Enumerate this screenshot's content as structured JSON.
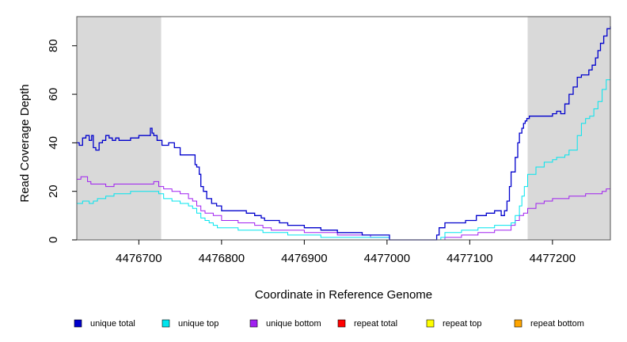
{
  "chart_data": {
    "type": "line",
    "xlabel": "Coordinate in Reference Genome",
    "ylabel": "Read Coverage Depth",
    "xlim": [
      4476625,
      4477270
    ],
    "ylim": [
      0,
      92
    ],
    "x_ticks": [
      4476700,
      4476800,
      4476900,
      4477000,
      4477100,
      4477200
    ],
    "x_tick_labels": [
      "4476700",
      "4476800",
      "4476900",
      "4477000",
      "4477100",
      "4477200"
    ],
    "y_ticks": [
      0,
      20,
      40,
      60,
      80
    ],
    "y_tick_labels": [
      "0",
      "20",
      "40",
      "60",
      "80"
    ],
    "shaded_regions": [
      {
        "x_start": 4476625,
        "x_end": 4476727,
        "color": "#d9d9d9"
      },
      {
        "x_start": 4477170,
        "x_end": 4477270,
        "color": "#d9d9d9"
      }
    ],
    "series": [
      {
        "name": "unique total",
        "color": "#0000cd",
        "x": [
          4476625,
          4476628,
          4476632,
          4476636,
          4476640,
          4476643,
          4476645,
          4476648,
          4476652,
          4476656,
          4476660,
          4476664,
          4476668,
          4476672,
          4476676,
          4476680,
          4476690,
          4476700,
          4476710,
          4476714,
          4476716,
          4476718,
          4476722,
          4476728,
          4476736,
          4476743,
          4476750,
          4476760,
          4476768,
          4476770,
          4476773,
          4476775,
          4476778,
          4476782,
          4476788,
          4476794,
          4476800,
          4476810,
          4476820,
          4476830,
          4476840,
          4476845,
          4476848,
          4476852,
          4476856,
          4476870,
          4476880,
          4476890,
          4476900,
          4476910,
          4476920,
          4476930,
          4476940,
          4476950,
          4476960,
          4476970,
          4476980,
          4477000,
          4477003,
          4477030,
          4477050,
          4477060,
          4477063,
          4477070,
          4477080,
          4477090,
          4477095,
          4477100,
          4477108,
          4477110,
          4477120,
          4477128,
          4477130,
          4477138,
          4477142,
          4477145,
          4477148,
          4477150,
          4477155,
          4477158,
          4477160,
          4477163,
          4477165,
          4477167,
          4477169,
          4477172,
          4477175,
          4477180,
          4477190,
          4477200,
          4477205,
          4477210,
          4477215,
          4477220,
          4477225,
          4477230,
          4477235,
          4477240,
          4477244,
          4477248,
          4477252,
          4477255,
          4477258,
          4477262,
          4477266,
          4477270
        ],
        "y": [
          40,
          39,
          42,
          43,
          41,
          43,
          38,
          37,
          40,
          41,
          43,
          42,
          41,
          42,
          41,
          41,
          42,
          43,
          43,
          46,
          44,
          43,
          41,
          39,
          40,
          38,
          35,
          35,
          31,
          30,
          27,
          22,
          20,
          17,
          15,
          14,
          12,
          12,
          12,
          11,
          10,
          10,
          9,
          8,
          8,
          7,
          6,
          6,
          5,
          5,
          4,
          4,
          3,
          3,
          3,
          2,
          2,
          2,
          0,
          0,
          0,
          2,
          5,
          7,
          7,
          7,
          8,
          8,
          10,
          10,
          11,
          11,
          12,
          10,
          12,
          16,
          22,
          28,
          34,
          40,
          44,
          46,
          48,
          49,
          50,
          51,
          51,
          51,
          51,
          52,
          53,
          52,
          56,
          60,
          63,
          67,
          68,
          68,
          70,
          72,
          75,
          78,
          81,
          84,
          87,
          88
        ]
      },
      {
        "name": "unique top",
        "color": "#00e5ee",
        "x": [
          4476625,
          4476632,
          4476640,
          4476645,
          4476650,
          4476660,
          4476670,
          4476680,
          4476690,
          4476700,
          4476710,
          4476718,
          4476724,
          4476730,
          4476740,
          4476750,
          4476760,
          4476765,
          4476770,
          4476775,
          4476780,
          4476785,
          4476790,
          4476795,
          4476800,
          4476810,
          4476820,
          4476830,
          4476840,
          4476850,
          4476860,
          4476870,
          4476880,
          4476900,
          4476920,
          4476940,
          4476960,
          4477000,
          4477003,
          4477060,
          4477065,
          4477070,
          4477090,
          4477110,
          4477130,
          4477140,
          4477150,
          4477155,
          4477160,
          4477163,
          4477166,
          4477170,
          4477180,
          4477190,
          4477200,
          4477205,
          4477210,
          4477215,
          4477220,
          4477230,
          4477235,
          4477240,
          4477245,
          4477250,
          4477255,
          4477260,
          4477265,
          4477270
        ],
        "y": [
          15,
          16,
          15,
          16,
          17,
          18,
          19,
          19,
          20,
          20,
          20,
          20,
          19,
          17,
          16,
          15,
          14,
          13,
          11,
          9,
          8,
          7,
          6,
          5,
          5,
          5,
          4,
          4,
          4,
          3,
          3,
          3,
          2,
          2,
          1,
          1,
          1,
          1,
          0,
          0,
          1,
          3,
          4,
          5,
          6,
          6,
          7,
          10,
          14,
          18,
          22,
          27,
          30,
          32,
          33,
          34,
          34,
          35,
          37,
          43,
          48,
          50,
          51,
          54,
          57,
          62,
          66,
          67
        ]
      },
      {
        "name": "unique bottom",
        "color": "#a020f0",
        "x": [
          4476625,
          4476630,
          4476638,
          4476642,
          4476650,
          4476660,
          4476670,
          4476680,
          4476690,
          4476700,
          4476710,
          4476718,
          4476724,
          4476730,
          4476740,
          4476750,
          4476760,
          4476765,
          4476770,
          4476775,
          4476780,
          4476790,
          4476800,
          4476820,
          4476840,
          4476850,
          4476860,
          4476880,
          4476900,
          4476920,
          4476940,
          4476960,
          4476980,
          4477000,
          4477003,
          4477050,
          4477060,
          4477070,
          4477090,
          4477110,
          4477130,
          4477140,
          4477150,
          4477155,
          4477160,
          4477165,
          4477170,
          4477180,
          4477190,
          4477200,
          4477210,
          4477220,
          4477230,
          4477240,
          4477250,
          4477260,
          4477265,
          4477270
        ],
        "y": [
          25,
          26,
          24,
          23,
          23,
          22,
          23,
          23,
          23,
          23,
          23,
          24,
          22,
          21,
          20,
          19,
          17,
          16,
          14,
          12,
          11,
          10,
          8,
          7,
          6,
          5,
          4,
          4,
          3,
          3,
          2,
          2,
          1,
          1,
          0,
          0,
          0,
          1,
          2,
          3,
          4,
          4,
          6,
          8,
          10,
          11,
          13,
          15,
          16,
          17,
          17,
          18,
          18,
          19,
          19,
          20,
          21,
          21
        ]
      },
      {
        "name": "repeat total",
        "color": "#ff0000",
        "x": [
          4476625,
          4477270
        ],
        "y": [
          0,
          0
        ]
      },
      {
        "name": "repeat top",
        "color": "#ffff00",
        "x": [
          4476625,
          4477270
        ],
        "y": [
          0,
          0
        ]
      },
      {
        "name": "repeat bottom",
        "color": "#ffa500",
        "x": [
          4476625,
          4477270
        ],
        "y": [
          0,
          0
        ]
      }
    ],
    "legend_position": "bottom"
  }
}
